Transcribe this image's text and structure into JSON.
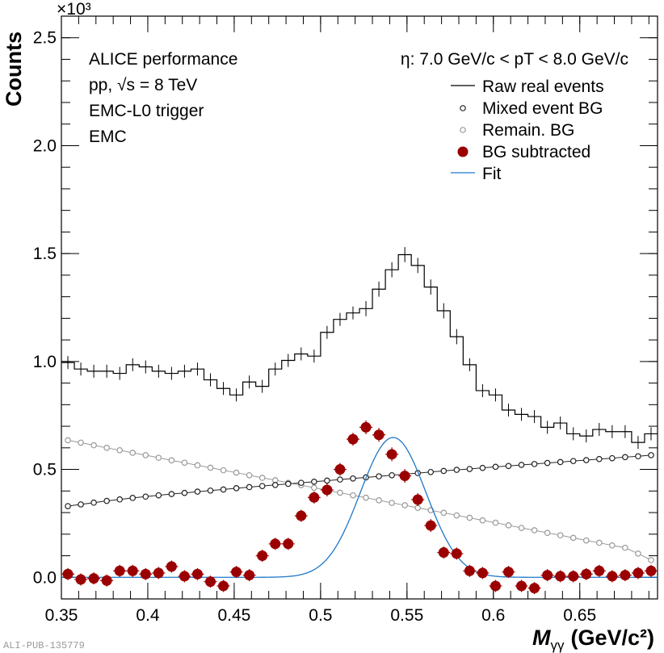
{
  "chart_data": {
    "type": "scatter",
    "title": "",
    "xlabel_italic": "M",
    "xlabel_sub": "γγ",
    "xlabel_unit": "(GeV/c²)",
    "ylabel": "Counts",
    "y_multiplier": "×10³",
    "xlim": [
      0.35,
      0.695
    ],
    "ylim": [
      -0.1,
      2.6
    ],
    "x_ticks": [
      0.35,
      0.4,
      0.45,
      0.5,
      0.55,
      0.6,
      0.65
    ],
    "x_tick_labels": [
      "0.35",
      "0.4",
      "0.45",
      "0.5",
      "0.55",
      "0.6",
      "0.65"
    ],
    "y_ticks": [
      0,
      0.5,
      1,
      1.5,
      2,
      2.5
    ],
    "y_tick_labels": [
      "0.0",
      "0.5",
      "1.0",
      "1.5",
      "2.0",
      "2.5"
    ],
    "bin_width": 0.0075,
    "info_lines": [
      "ALICE performance",
      "pp, √s = 8 TeV",
      "EMC-L0 trigger",
      "EMC"
    ],
    "kinematic_label": "η: 7.0 GeV/c < pT < 8.0 GeV/c",
    "publication_id": "ALI-PUB-135779",
    "legend_position": "top-right",
    "legend": [
      {
        "label": "Raw real events",
        "marker": "line",
        "color": "#000000"
      },
      {
        "label": "Mixed event BG",
        "marker": "open-circle",
        "color": "#222222"
      },
      {
        "label": "Remain. BG",
        "marker": "open-circle",
        "color": "#999999"
      },
      {
        "label": "BG subtracted",
        "marker": "filled-circle",
        "color": "#9b0000"
      },
      {
        "label": "Fit",
        "marker": "line",
        "color": "#1f77c9"
      }
    ],
    "series": [
      {
        "name": "Raw real events",
        "x": [
          0.35375,
          0.36125,
          0.36875,
          0.37625,
          0.38375,
          0.39125,
          0.39875,
          0.40625,
          0.41375,
          0.42125,
          0.42875,
          0.43625,
          0.44375,
          0.45125,
          0.45875,
          0.46625,
          0.47375,
          0.48125,
          0.48875,
          0.49625,
          0.50375,
          0.51125,
          0.51875,
          0.52625,
          0.53375,
          0.54125,
          0.54875,
          0.55625,
          0.56375,
          0.57125,
          0.57875,
          0.58625,
          0.59375,
          0.60125,
          0.60875,
          0.61625,
          0.62375,
          0.63125,
          0.63875,
          0.64625,
          0.65375,
          0.66125,
          0.66875,
          0.67625,
          0.68375,
          0.69125
        ],
        "values": [
          0.995,
          0.965,
          0.955,
          0.955,
          0.945,
          0.985,
          0.975,
          0.955,
          0.945,
          0.955,
          0.965,
          0.915,
          0.875,
          0.845,
          0.905,
          0.885,
          0.965,
          1.005,
          1.035,
          1.025,
          1.135,
          1.195,
          1.225,
          1.245,
          1.335,
          1.425,
          1.495,
          1.445,
          1.345,
          1.235,
          1.115,
          0.985,
          0.865,
          0.845,
          0.775,
          0.755,
          0.745,
          0.695,
          0.715,
          0.665,
          0.655,
          0.685,
          0.675,
          0.675,
          0.625,
          0.665
        ],
        "errors": [
          0.03,
          0.03,
          0.03,
          0.03,
          0.03,
          0.03,
          0.03,
          0.03,
          0.03,
          0.03,
          0.03,
          0.03,
          0.03,
          0.03,
          0.03,
          0.03,
          0.03,
          0.03,
          0.03,
          0.03,
          0.03,
          0.03,
          0.03,
          0.035,
          0.035,
          0.035,
          0.035,
          0.035,
          0.035,
          0.035,
          0.035,
          0.03,
          0.03,
          0.03,
          0.03,
          0.03,
          0.03,
          0.03,
          0.03,
          0.03,
          0.03,
          0.03,
          0.03,
          0.03,
          0.03,
          0.03
        ]
      },
      {
        "name": "Mixed event BG",
        "x": [
          0.35375,
          0.36125,
          0.36875,
          0.37625,
          0.38375,
          0.39125,
          0.39875,
          0.40625,
          0.41375,
          0.42125,
          0.42875,
          0.43625,
          0.44375,
          0.45125,
          0.45875,
          0.46625,
          0.47375,
          0.48125,
          0.48875,
          0.49625,
          0.50375,
          0.51125,
          0.51875,
          0.52625,
          0.53375,
          0.54125,
          0.54875,
          0.55625,
          0.56375,
          0.57125,
          0.57875,
          0.58625,
          0.59375,
          0.60125,
          0.60875,
          0.61625,
          0.62375,
          0.63125,
          0.63875,
          0.64625,
          0.65375,
          0.66125,
          0.66875,
          0.67625,
          0.68375,
          0.69125
        ],
        "values": [
          0.33,
          0.338,
          0.346,
          0.354,
          0.361,
          0.368,
          0.374,
          0.38,
          0.386,
          0.391,
          0.397,
          0.402,
          0.407,
          0.413,
          0.418,
          0.423,
          0.428,
          0.433,
          0.438,
          0.443,
          0.448,
          0.453,
          0.458,
          0.463,
          0.468,
          0.473,
          0.478,
          0.483,
          0.488,
          0.493,
          0.498,
          0.502,
          0.507,
          0.512,
          0.516,
          0.521,
          0.525,
          0.53,
          0.534,
          0.539,
          0.543,
          0.548,
          0.552,
          0.557,
          0.561,
          0.566
        ]
      },
      {
        "name": "Remain. BG",
        "x": [
          0.35375,
          0.36125,
          0.36875,
          0.37625,
          0.38375,
          0.39125,
          0.39875,
          0.40625,
          0.41375,
          0.42125,
          0.42875,
          0.43625,
          0.44375,
          0.45125,
          0.45875,
          0.46625,
          0.47375,
          0.48125,
          0.48875,
          0.49625,
          0.50375,
          0.51125,
          0.51875,
          0.52625,
          0.53375,
          0.54125,
          0.54875,
          0.55625,
          0.56375,
          0.57125,
          0.57875,
          0.58625,
          0.59375,
          0.60125,
          0.60875,
          0.61625,
          0.62375,
          0.63125,
          0.63875,
          0.64625,
          0.65375,
          0.66125,
          0.66875,
          0.67625,
          0.68375,
          0.69125
        ],
        "values": [
          0.635,
          0.624,
          0.612,
          0.6,
          0.589,
          0.577,
          0.566,
          0.554,
          0.542,
          0.531,
          0.519,
          0.508,
          0.496,
          0.485,
          0.473,
          0.461,
          0.45,
          0.438,
          0.427,
          0.415,
          0.403,
          0.392,
          0.38,
          0.369,
          0.357,
          0.345,
          0.334,
          0.322,
          0.311,
          0.299,
          0.287,
          0.276,
          0.264,
          0.253,
          0.241,
          0.229,
          0.218,
          0.206,
          0.195,
          0.183,
          0.171,
          0.16,
          0.148,
          0.137,
          0.11,
          0.08
        ]
      },
      {
        "name": "BG subtracted",
        "x": [
          0.35375,
          0.36125,
          0.36875,
          0.37625,
          0.38375,
          0.39125,
          0.39875,
          0.40625,
          0.41375,
          0.42125,
          0.42875,
          0.43625,
          0.44375,
          0.45125,
          0.45875,
          0.46625,
          0.47375,
          0.48125,
          0.48875,
          0.49625,
          0.50375,
          0.51125,
          0.51875,
          0.52625,
          0.53375,
          0.54125,
          0.54875,
          0.55625,
          0.56375,
          0.57125,
          0.57875,
          0.58625,
          0.59375,
          0.60125,
          0.60875,
          0.61625,
          0.62375,
          0.63125,
          0.63875,
          0.64625,
          0.65375,
          0.66125,
          0.66875,
          0.67625,
          0.68375,
          0.69125
        ],
        "values": [
          0.015,
          -0.01,
          -0.005,
          -0.015,
          0.03,
          0.03,
          0.015,
          0.02,
          0.05,
          0.005,
          0.015,
          -0.02,
          -0.04,
          0.025,
          0.01,
          0.1,
          0.155,
          0.155,
          0.285,
          0.37,
          0.405,
          0.5,
          0.64,
          0.695,
          0.66,
          0.57,
          0.47,
          0.36,
          0.24,
          0.115,
          0.11,
          0.03,
          0.02,
          -0.04,
          0.025,
          -0.04,
          -0.05,
          0.01,
          0.005,
          0.005,
          0.015,
          0.03,
          0.005,
          0.01,
          0.02,
          0.03
        ],
        "errors": [
          0.028,
          0.028,
          0.028,
          0.028,
          0.028,
          0.028,
          0.028,
          0.028,
          0.028,
          0.028,
          0.028,
          0.028,
          0.028,
          0.028,
          0.028,
          0.028,
          0.028,
          0.028,
          0.028,
          0.028,
          0.03,
          0.03,
          0.03,
          0.032,
          0.032,
          0.032,
          0.032,
          0.03,
          0.03,
          0.028,
          0.028,
          0.028,
          0.028,
          0.028,
          0.028,
          0.028,
          0.028,
          0.028,
          0.028,
          0.028,
          0.028,
          0.028,
          0.028,
          0.028,
          0.028,
          0.028
        ]
      },
      {
        "name": "Fit",
        "function": "gaussian",
        "amplitude": 0.648,
        "mean": 0.542,
        "sigma": 0.019,
        "range": [
          0.35,
          0.695
        ]
      }
    ]
  }
}
